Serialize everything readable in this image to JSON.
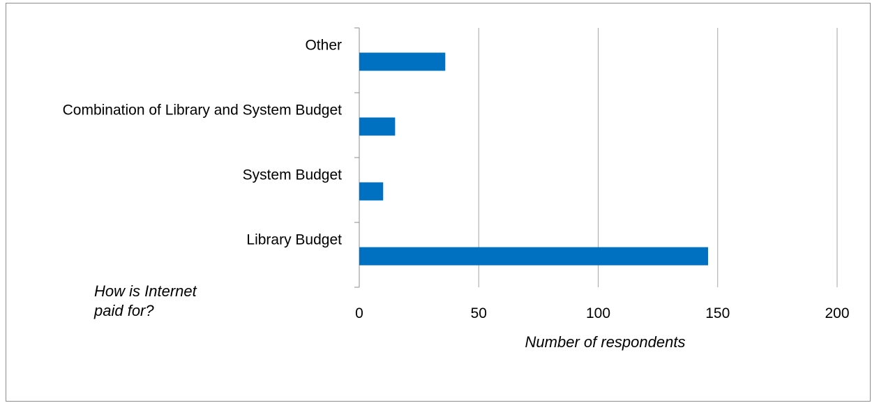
{
  "chart_data": {
    "type": "bar",
    "orientation": "horizontal",
    "categories": [
      "Library Budget",
      "System Budget",
      "Combination of Library and System Budget",
      "Other"
    ],
    "values": [
      146,
      10,
      15,
      36
    ],
    "xlabel": "Number of respondents",
    "ylabel_lines": [
      "How is Internet",
      "paid for?"
    ],
    "xlim": [
      0,
      200
    ],
    "xticks": [
      "0",
      "50",
      "100",
      "150",
      "200"
    ],
    "grid": "vertical",
    "bar_color": "#0070C0",
    "grid_color": "#a6a6a6",
    "axis_color": "#8c8c8c"
  }
}
